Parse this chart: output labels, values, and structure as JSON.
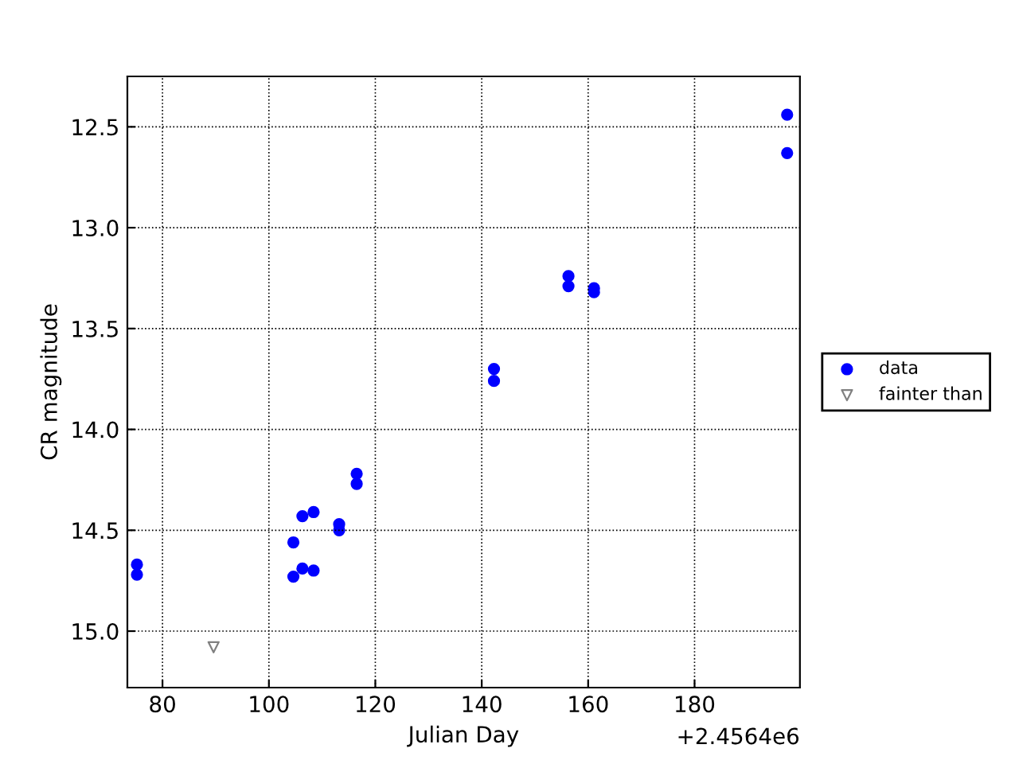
{
  "chart_data": {
    "type": "scatter",
    "xlabel": "Julian Day",
    "ylabel": "CR magnitude",
    "series": [
      {
        "name": "data",
        "color": "#0000ff",
        "marker": "circle",
        "x": [
          75.2,
          75.2,
          104.6,
          104.6,
          106.3,
          106.3,
          108.4,
          108.4,
          113.2,
          113.2,
          116.5,
          116.5,
          142.3,
          142.3,
          156.3,
          156.3,
          161.1,
          161.1,
          197.4,
          197.4
        ],
        "values": [
          14.67,
          14.72,
          14.56,
          14.73,
          14.43,
          14.69,
          14.41,
          14.7,
          14.47,
          14.5,
          14.22,
          14.27,
          13.7,
          13.76,
          13.24,
          13.29,
          13.3,
          13.32,
          12.44,
          12.63
        ]
      },
      {
        "name": "fainter than",
        "color": "#808080",
        "marker": "triangle",
        "x": [
          89.6
        ],
        "values": [
          15.08
        ]
      }
    ],
    "xlim": [
      73.4,
      199.8
    ],
    "ylim": [
      15.28,
      12.25
    ],
    "xticks": [
      80,
      100,
      120,
      140,
      160,
      180
    ],
    "yticks": [
      {
        "value": 12.5,
        "label": "12.5"
      },
      {
        "value": 13.0,
        "label": "13.0"
      },
      {
        "value": 13.5,
        "label": "13.5"
      },
      {
        "value": 14.0,
        "label": "14.0"
      },
      {
        "value": 14.5,
        "label": "14.5"
      },
      {
        "value": 15.0,
        "label": "15.0"
      }
    ],
    "annotations": [
      "+2.4564e6"
    ],
    "grid": true,
    "legend": "right"
  }
}
